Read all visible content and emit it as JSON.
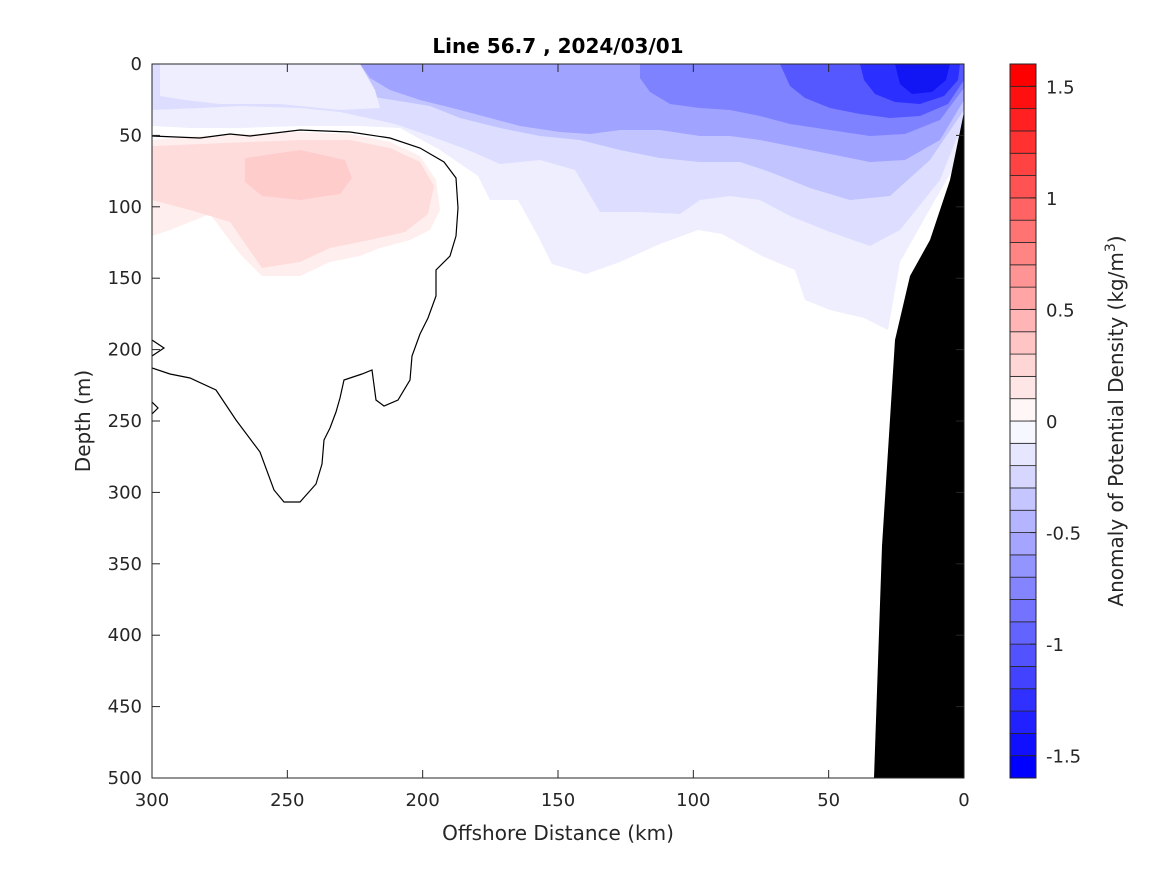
{
  "chart_data": {
    "type": "heatmap",
    "title": "Line 56.7 , 2024/03/01",
    "xlabel": "Offshore Distance (km)",
    "ylabel": "Depth (m)",
    "xlim": [
      300,
      0
    ],
    "ylim": [
      500,
      0
    ],
    "x_ticks": [
      300,
      250,
      200,
      150,
      100,
      50,
      0
    ],
    "y_ticks": [
      0,
      50,
      100,
      150,
      200,
      250,
      300,
      350,
      400,
      450,
      500
    ],
    "colorbar": {
      "label_prefix": "Anomaly of Potential Density (kg/m",
      "label_sup": "3",
      "label_suffix": ")",
      "range": [
        -1.6,
        1.6
      ],
      "step": 0.1,
      "ticks": [
        1.5,
        1,
        0.5,
        0,
        -0.5,
        -1,
        -1.5
      ],
      "tick_labels": [
        "1.5",
        "1",
        "0.5",
        "0",
        "-0.5",
        "-1",
        "-1.5"
      ],
      "positive_color": "#ff0000",
      "negative_color": "#0000ff",
      "neutral_color": "#ffffff"
    },
    "zero_contour_color": "#000000",
    "bathymetry_color": "#000000",
    "regions": [
      {
        "name": "surface-negative-nearshore",
        "x_range": [
          0,
          60
        ],
        "depth_range": [
          0,
          60
        ],
        "value": -1.2
      },
      {
        "name": "surface-negative-mid",
        "x_range": [
          60,
          180
        ],
        "depth_range": [
          0,
          50
        ],
        "value": -0.4
      },
      {
        "name": "subsurface-positive-core",
        "x_range": [
          220,
          270
        ],
        "depth_range": [
          60,
          100
        ],
        "value": 0.3
      },
      {
        "name": "subsurface-positive-envelope",
        "x_range": [
          190,
          300
        ],
        "depth_range": [
          50,
          150
        ],
        "value": 0.1
      }
    ]
  }
}
